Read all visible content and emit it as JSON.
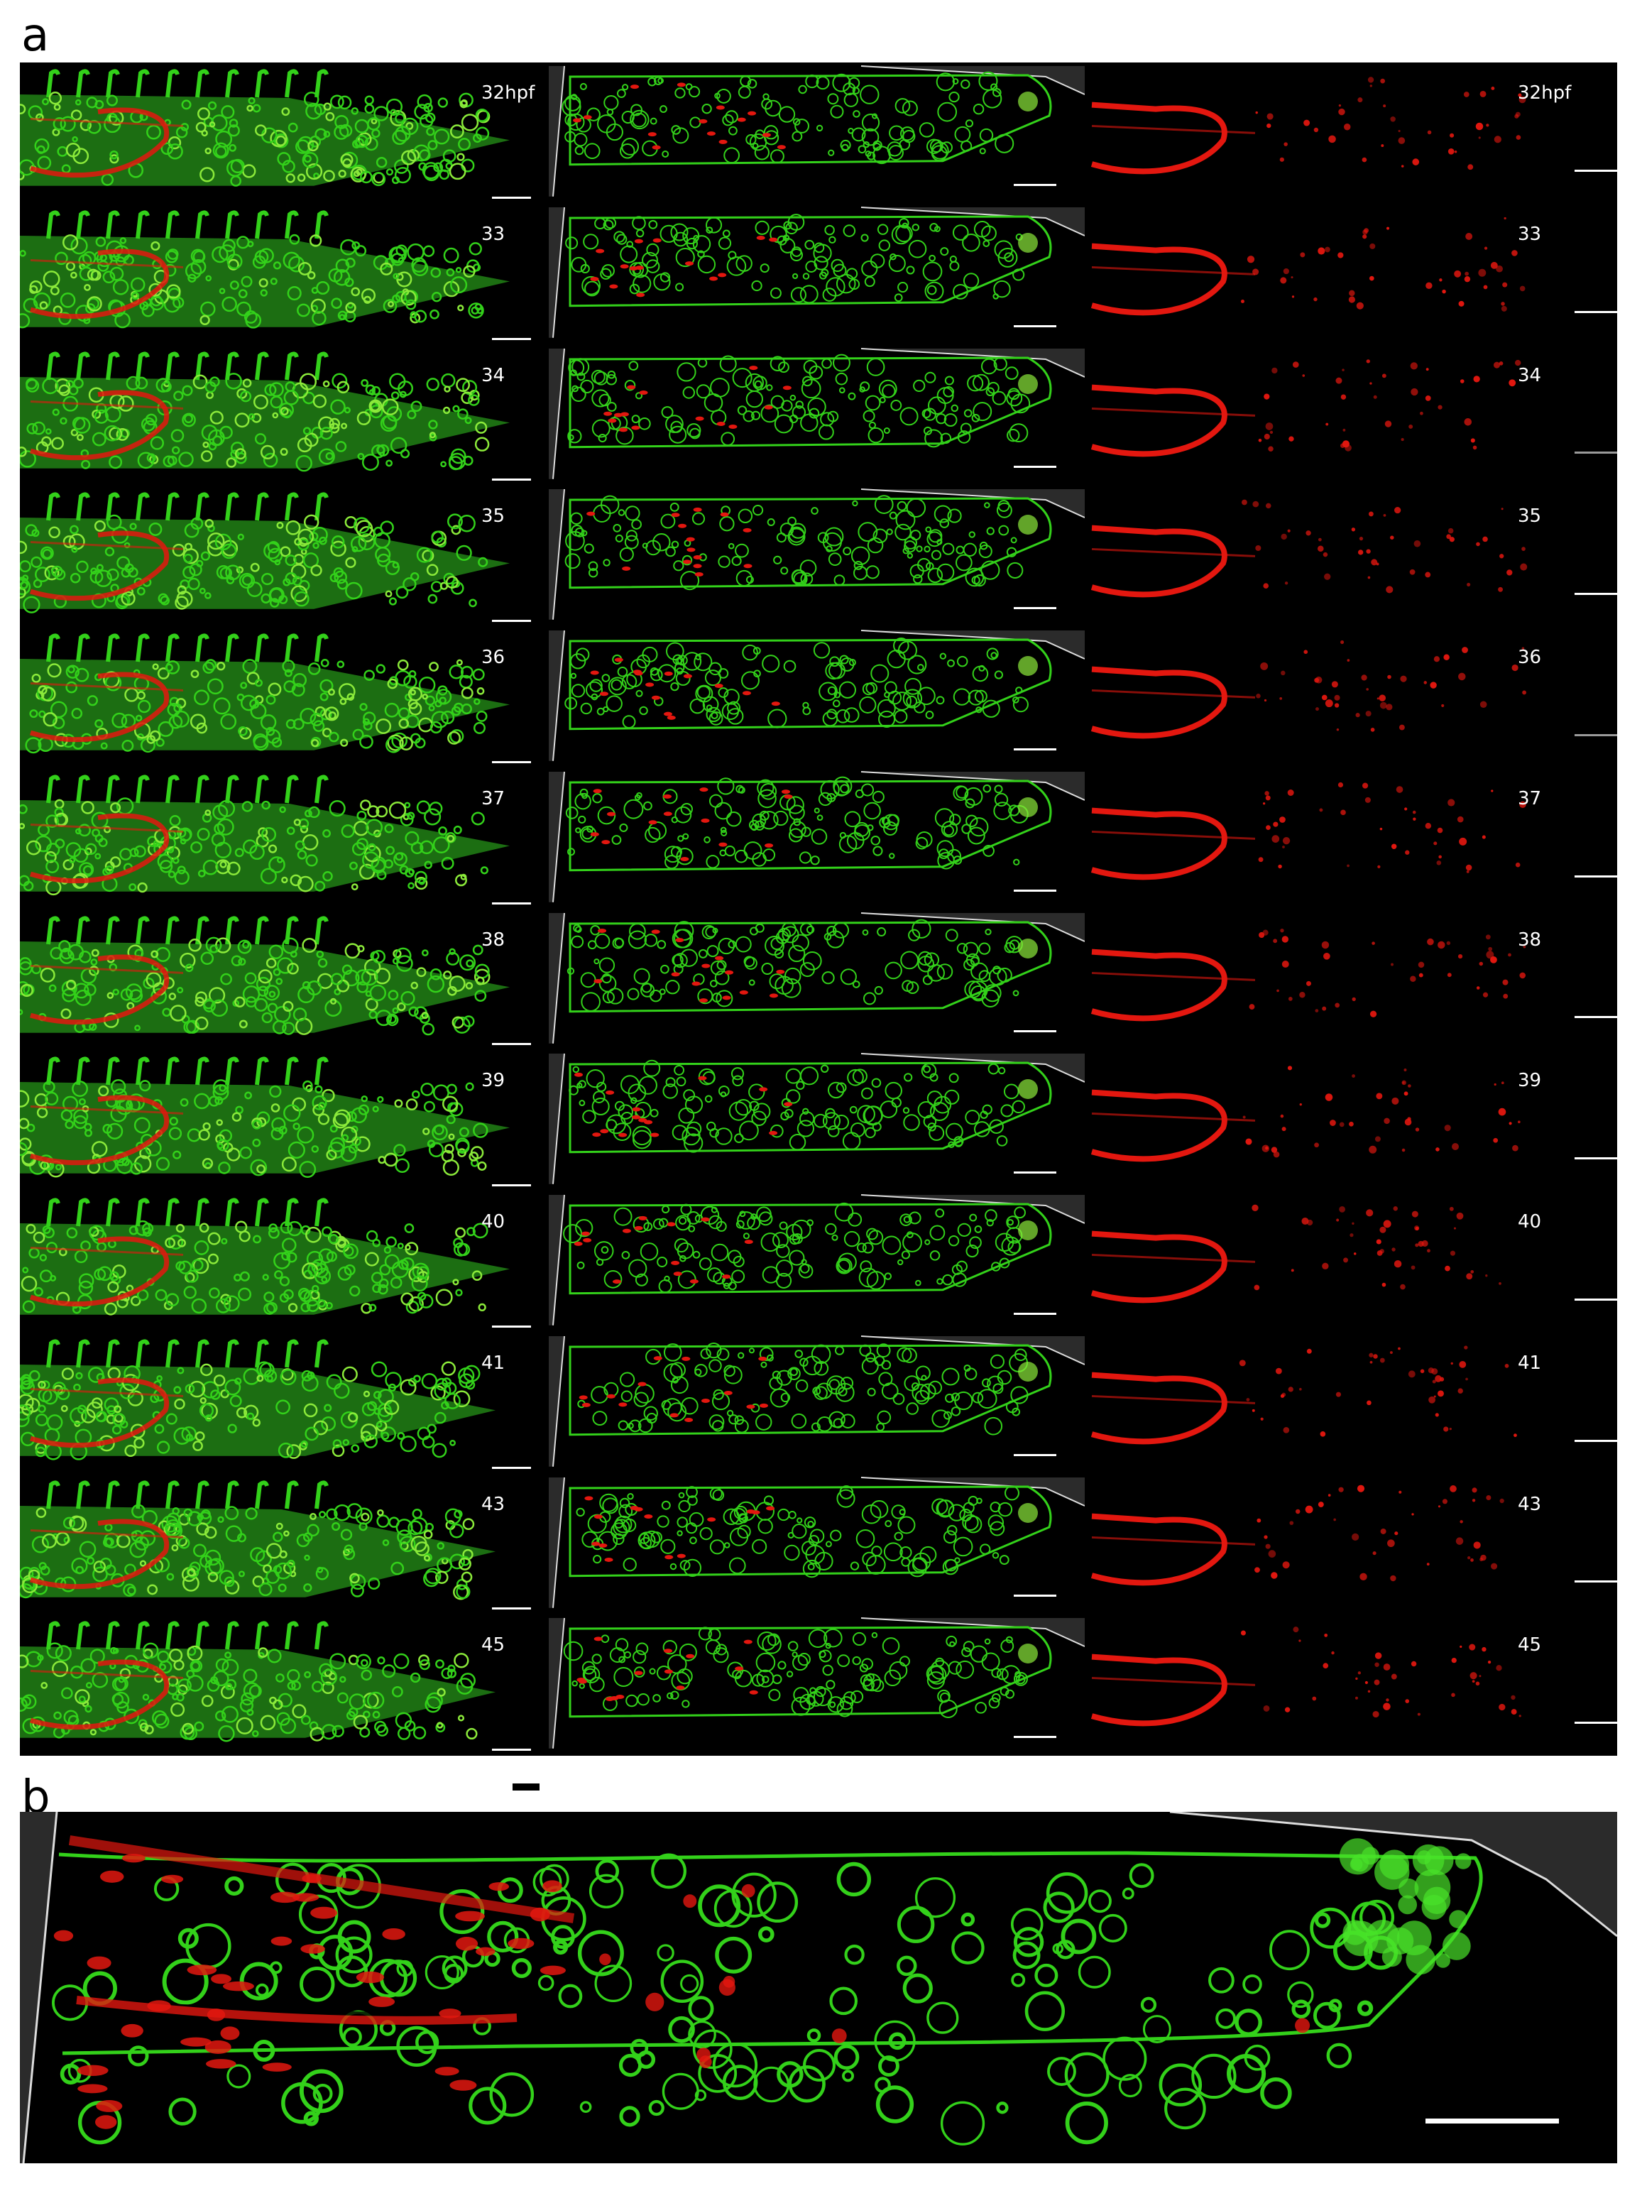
{
  "figure": {
    "panel_a_letter": "a",
    "panel_b_letter": "b",
    "timepoints": [
      "32hpf",
      "33",
      "34",
      "35",
      "36",
      "37",
      "38",
      "39",
      "40",
      "41",
      "43",
      "45"
    ],
    "channels": [
      "merged",
      "green-section",
      "red"
    ],
    "colors": {
      "background": "#000000",
      "green": "#33d11a",
      "red": "#e3170f",
      "scalebar": "#ffffff"
    }
  }
}
